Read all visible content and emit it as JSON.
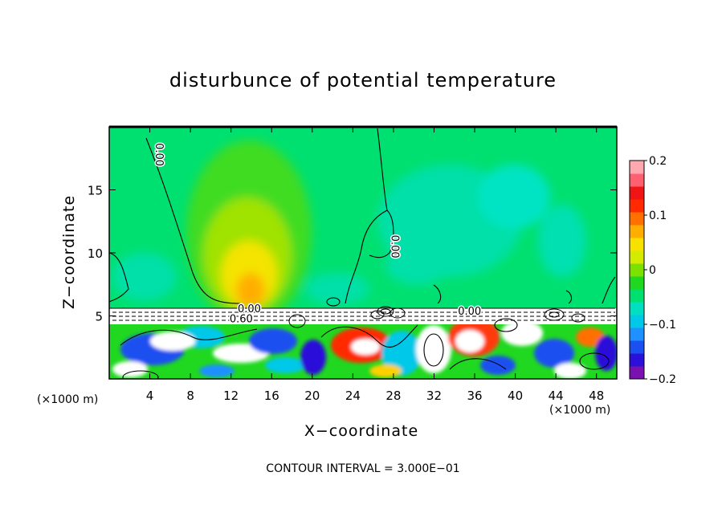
{
  "chart_data": {
    "type": "heatmap",
    "title": "disturbunce of potential temperature",
    "xlabel": "X−coordinate",
    "ylabel": "Z−coordinate",
    "x_unit_label": "(×1000 m)",
    "xlim": [
      0,
      50
    ],
    "ylim": [
      0,
      20
    ],
    "x_ticks": [
      4,
      8,
      12,
      16,
      20,
      24,
      28,
      32,
      36,
      40,
      44,
      48
    ],
    "y_ticks": [
      5,
      10,
      15
    ],
    "colorbar": {
      "range": [
        -0.2,
        0.2
      ],
      "tick_values": [
        0.2,
        0.1,
        0,
        -0.1,
        -0.2
      ],
      "tick_labels": [
        "0.2",
        "0.1",
        "0",
        "−0.1",
        "−0.2"
      ],
      "colors": [
        "#7a10b0",
        "#2a10d8",
        "#1a50f0",
        "#1e90ff",
        "#00c8e8",
        "#00e0c0",
        "#00e070",
        "#20d820",
        "#7ce000",
        "#d4ea00",
        "#f8e000",
        "#ffae00",
        "#ff7000",
        "#ff2a00",
        "#f01414",
        "#ff6070",
        "#ffa8b0"
      ]
    },
    "contour_labels": [
      {
        "text": "0.00",
        "x": 5.0,
        "z": 17.8,
        "rotate": 90
      },
      {
        "text": "0.00",
        "x": 28.2,
        "z": 10.5,
        "rotate": 90
      },
      {
        "text": "0.00",
        "x": 13.8,
        "z": 5.6,
        "rotate": 0
      },
      {
        "text": "0.60",
        "x": 13.0,
        "z": 4.8,
        "rotate": 0
      },
      {
        "text": "0.00",
        "x": 35.5,
        "z": 5.4,
        "rotate": 0
      }
    ],
    "footnote": "CONTOUR INTERVAL =  3.000E−01"
  }
}
